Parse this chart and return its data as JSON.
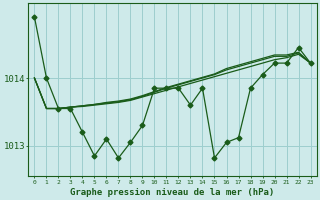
{
  "xlabel": "Graphe pression niveau de la mer (hPa)",
  "bg_color": "#ceeaea",
  "grid_color": "#9dcece",
  "line_color": "#1a5c1a",
  "ylim": [
    1012.55,
    1015.1
  ],
  "yticks": [
    1013,
    1014
  ],
  "ytick_labels": [
    "1013",
    "1014"
  ],
  "xlim": [
    -0.5,
    23.5
  ],
  "x_hours": [
    0,
    1,
    2,
    3,
    4,
    5,
    6,
    7,
    8,
    9,
    10,
    11,
    12,
    13,
    14,
    15,
    16,
    17,
    18,
    19,
    20,
    21,
    22,
    23
  ],
  "series1": [
    1014.9,
    1014.0,
    1013.55,
    1013.55,
    1013.2,
    1012.85,
    1013.1,
    1012.82,
    1013.05,
    1013.3,
    1013.85,
    1013.85,
    1013.85,
    1013.6,
    1013.85,
    1012.82,
    1013.05,
    1013.12,
    1013.85,
    1014.05,
    1014.22,
    1014.22,
    1014.45,
    1014.22
  ],
  "series2": [
    1014.0,
    1013.55,
    1013.55,
    1013.57,
    1013.58,
    1013.6,
    1013.62,
    1013.64,
    1013.67,
    1013.72,
    1013.77,
    1013.82,
    1013.87,
    1013.92,
    1013.97,
    1014.02,
    1014.07,
    1014.12,
    1014.17,
    1014.22,
    1014.27,
    1014.3,
    1014.35,
    1014.22
  ],
  "series3": [
    1014.0,
    1013.55,
    1013.55,
    1013.57,
    1013.59,
    1013.61,
    1013.63,
    1013.65,
    1013.68,
    1013.73,
    1013.79,
    1013.85,
    1013.9,
    1013.95,
    1014.0,
    1014.05,
    1014.12,
    1014.17,
    1014.22,
    1014.27,
    1014.32,
    1014.32,
    1014.37,
    1014.22
  ],
  "series4": [
    1014.0,
    1013.55,
    1013.55,
    1013.57,
    1013.59,
    1013.61,
    1013.64,
    1013.66,
    1013.69,
    1013.74,
    1013.8,
    1013.86,
    1013.91,
    1013.96,
    1014.01,
    1014.06,
    1014.14,
    1014.19,
    1014.24,
    1014.29,
    1014.34,
    1014.34,
    1014.38,
    1014.22
  ]
}
